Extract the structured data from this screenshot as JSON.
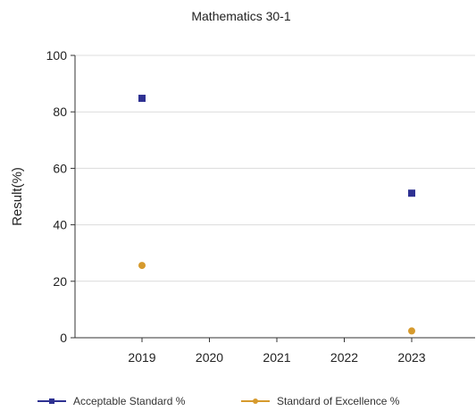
{
  "chart_data": {
    "type": "scatter",
    "title": "Mathematics 30-1",
    "xlabel": "",
    "ylabel": "Result(%)",
    "categories": [
      "2019",
      "2020",
      "2021",
      "2022",
      "2023"
    ],
    "ylim": [
      0,
      100
    ],
    "yticks": [
      "0",
      "20",
      "40",
      "60",
      "80",
      "100"
    ],
    "grid": true,
    "legend_position": "bottom",
    "series": [
      {
        "name": "Acceptable Standard %",
        "color": "#2e3192",
        "marker": "square",
        "values": [
          84.8,
          null,
          null,
          null,
          51.2
        ]
      },
      {
        "name": "Standard of Excellence %",
        "color": "#d69a2d",
        "marker": "circle",
        "values": [
          25.6,
          null,
          null,
          null,
          2.4
        ]
      }
    ]
  }
}
